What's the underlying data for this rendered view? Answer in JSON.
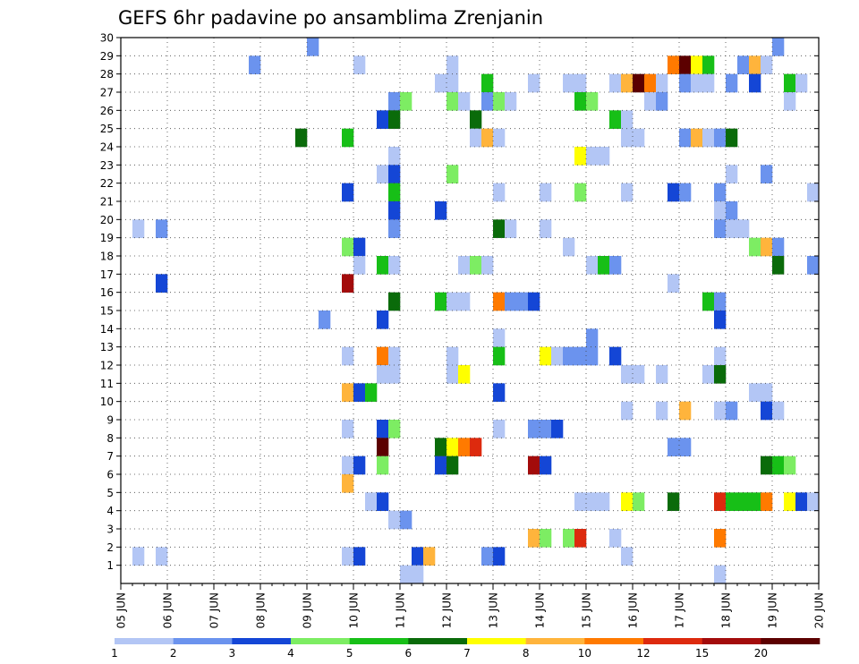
{
  "chart_data": {
    "type": "heatmap",
    "title": "GEFS 6hr padavine po ansamblima Zrenjanin",
    "xlabel": "",
    "ylabel": "",
    "x_tick_labels": [
      "05 JUN",
      "06 JUN",
      "07 JUN",
      "08 JUN",
      "09 JUN",
      "10 JUN",
      "11 JUN",
      "12 JUN",
      "13 JUN",
      "14 JUN",
      "15 JUN",
      "16 JUN",
      "17 JUN",
      "18 JUN",
      "19 JUN",
      "20 JUN"
    ],
    "y_tick_labels": [
      "1",
      "2",
      "3",
      "4",
      "5",
      "6",
      "7",
      "8",
      "9",
      "10",
      "11",
      "12",
      "13",
      "14",
      "15",
      "16",
      "17",
      "18",
      "19",
      "20",
      "21",
      "22",
      "23",
      "24",
      "25",
      "26",
      "27",
      "28",
      "29",
      "30"
    ],
    "xlim_steps": [
      0,
      60
    ],
    "ylim": [
      0,
      30
    ],
    "step_hours": 6,
    "grid": true,
    "colorbar": {
      "position": "bottom",
      "levels": [
        "1",
        "2",
        "3",
        "4",
        "5",
        "6",
        "7",
        "8",
        "10",
        "12",
        "15",
        "20"
      ],
      "colors": [
        "#b3c6f5",
        "#6b93ee",
        "#1446d6",
        "#7ded63",
        "#17bf17",
        "#0a6b0a",
        "#ffff00",
        "#ffb43c",
        "#ff7a00",
        "#dd2a0e",
        "#a30b0b",
        "#5c0000"
      ]
    },
    "cells": [
      [
        16,
        30,
        1
      ],
      [
        56,
        30,
        1
      ],
      [
        11,
        29,
        1
      ],
      [
        20,
        29,
        0
      ],
      [
        28,
        29,
        0
      ],
      [
        47,
        29,
        8
      ],
      [
        48,
        29,
        11
      ],
      [
        49,
        29,
        6
      ],
      [
        50,
        29,
        4
      ],
      [
        53,
        29,
        1
      ],
      [
        54,
        29,
        7
      ],
      [
        55,
        29,
        0
      ],
      [
        27,
        28,
        0
      ],
      [
        28,
        28,
        0
      ],
      [
        31,
        28,
        4
      ],
      [
        35,
        28,
        0
      ],
      [
        38,
        28,
        0
      ],
      [
        39,
        28,
        0
      ],
      [
        42,
        28,
        0
      ],
      [
        43,
        28,
        7
      ],
      [
        44,
        28,
        11
      ],
      [
        45,
        28,
        8
      ],
      [
        46,
        28,
        0
      ],
      [
        48,
        28,
        1
      ],
      [
        49,
        28,
        0
      ],
      [
        50,
        28,
        0
      ],
      [
        52,
        28,
        1
      ],
      [
        54,
        28,
        2
      ],
      [
        57,
        28,
        4
      ],
      [
        58,
        28,
        0
      ],
      [
        23,
        27,
        1
      ],
      [
        24,
        27,
        3
      ],
      [
        28,
        27,
        3
      ],
      [
        29,
        27,
        0
      ],
      [
        31,
        27,
        1
      ],
      [
        32,
        27,
        3
      ],
      [
        33,
        27,
        0
      ],
      [
        39,
        27,
        4
      ],
      [
        40,
        27,
        3
      ],
      [
        45,
        27,
        0
      ],
      [
        46,
        27,
        1
      ],
      [
        57,
        27,
        0
      ],
      [
        22,
        26,
        2
      ],
      [
        23,
        26,
        5
      ],
      [
        30,
        26,
        5
      ],
      [
        42,
        26,
        4
      ],
      [
        43,
        26,
        0
      ],
      [
        15,
        25,
        5
      ],
      [
        19,
        25,
        4
      ],
      [
        30,
        25,
        0
      ],
      [
        31,
        25,
        7
      ],
      [
        32,
        25,
        0
      ],
      [
        43,
        25,
        0
      ],
      [
        44,
        25,
        0
      ],
      [
        48,
        25,
        1
      ],
      [
        49,
        25,
        7
      ],
      [
        50,
        25,
        0
      ],
      [
        51,
        25,
        1
      ],
      [
        52,
        25,
        5
      ],
      [
        23,
        24,
        0
      ],
      [
        39,
        24,
        6
      ],
      [
        40,
        24,
        0
      ],
      [
        41,
        24,
        0
      ],
      [
        22,
        23,
        0
      ],
      [
        23,
        23,
        2
      ],
      [
        28,
        23,
        3
      ],
      [
        52,
        23,
        0
      ],
      [
        55,
        23,
        1
      ],
      [
        19,
        22,
        2
      ],
      [
        23,
        22,
        4
      ],
      [
        32,
        22,
        0
      ],
      [
        36,
        22,
        0
      ],
      [
        39,
        22,
        3
      ],
      [
        43,
        22,
        0
      ],
      [
        47,
        22,
        2
      ],
      [
        48,
        22,
        1
      ],
      [
        51,
        22,
        1
      ],
      [
        59,
        22,
        0
      ],
      [
        23,
        21,
        2
      ],
      [
        27,
        21,
        2
      ],
      [
        51,
        21,
        0
      ],
      [
        52,
        21,
        1
      ],
      [
        1,
        20,
        0
      ],
      [
        3,
        20,
        1
      ],
      [
        23,
        20,
        1
      ],
      [
        32,
        20,
        5
      ],
      [
        33,
        20,
        0
      ],
      [
        36,
        20,
        0
      ],
      [
        51,
        20,
        1
      ],
      [
        52,
        20,
        0
      ],
      [
        53,
        20,
        0
      ],
      [
        19,
        19,
        3
      ],
      [
        20,
        19,
        2
      ],
      [
        38,
        19,
        0
      ],
      [
        54,
        19,
        3
      ],
      [
        55,
        19,
        7
      ],
      [
        56,
        19,
        1
      ],
      [
        20,
        18,
        0
      ],
      [
        22,
        18,
        4
      ],
      [
        23,
        18,
        0
      ],
      [
        29,
        18,
        0
      ],
      [
        30,
        18,
        3
      ],
      [
        31,
        18,
        0
      ],
      [
        40,
        18,
        0
      ],
      [
        41,
        18,
        4
      ],
      [
        42,
        18,
        1
      ],
      [
        56,
        18,
        5
      ],
      [
        59,
        18,
        1
      ],
      [
        3,
        17,
        2
      ],
      [
        19,
        17,
        10
      ],
      [
        47,
        17,
        0
      ],
      [
        23,
        16,
        5
      ],
      [
        27,
        16,
        4
      ],
      [
        28,
        16,
        0
      ],
      [
        29,
        16,
        0
      ],
      [
        32,
        16,
        8
      ],
      [
        33,
        16,
        1
      ],
      [
        34,
        16,
        1
      ],
      [
        35,
        16,
        2
      ],
      [
        50,
        16,
        4
      ],
      [
        51,
        16,
        1
      ],
      [
        17,
        15,
        1
      ],
      [
        22,
        15,
        2
      ],
      [
        51,
        15,
        2
      ],
      [
        32,
        14,
        0
      ],
      [
        40,
        14,
        1
      ],
      [
        19,
        13,
        0
      ],
      [
        22,
        13,
        8
      ],
      [
        23,
        13,
        0
      ],
      [
        28,
        13,
        0
      ],
      [
        32,
        13,
        4
      ],
      [
        36,
        13,
        6
      ],
      [
        37,
        13,
        0
      ],
      [
        38,
        13,
        1
      ],
      [
        39,
        13,
        1
      ],
      [
        40,
        13,
        1
      ],
      [
        42,
        13,
        2
      ],
      [
        51,
        13,
        0
      ],
      [
        22,
        12,
        0
      ],
      [
        23,
        12,
        0
      ],
      [
        28,
        12,
        0
      ],
      [
        29,
        12,
        6
      ],
      [
        43,
        12,
        0
      ],
      [
        44,
        12,
        0
      ],
      [
        46,
        12,
        0
      ],
      [
        50,
        12,
        0
      ],
      [
        51,
        12,
        5
      ],
      [
        19,
        11,
        7
      ],
      [
        20,
        11,
        2
      ],
      [
        21,
        11,
        4
      ],
      [
        32,
        11,
        2
      ],
      [
        54,
        11,
        0
      ],
      [
        55,
        11,
        0
      ],
      [
        43,
        10,
        0
      ],
      [
        46,
        10,
        0
      ],
      [
        48,
        10,
        7
      ],
      [
        51,
        10,
        0
      ],
      [
        52,
        10,
        1
      ],
      [
        55,
        10,
        2
      ],
      [
        56,
        10,
        0
      ],
      [
        19,
        9,
        0
      ],
      [
        22,
        9,
        2
      ],
      [
        23,
        9,
        3
      ],
      [
        32,
        9,
        0
      ],
      [
        35,
        9,
        1
      ],
      [
        36,
        9,
        1
      ],
      [
        37,
        9,
        2
      ],
      [
        22,
        8,
        11
      ],
      [
        27,
        8,
        5
      ],
      [
        28,
        8,
        6
      ],
      [
        29,
        8,
        8
      ],
      [
        30,
        8,
        9
      ],
      [
        47,
        8,
        1
      ],
      [
        48,
        8,
        1
      ],
      [
        19,
        7,
        0
      ],
      [
        20,
        7,
        2
      ],
      [
        22,
        7,
        3
      ],
      [
        27,
        7,
        2
      ],
      [
        28,
        7,
        5
      ],
      [
        35,
        7,
        10
      ],
      [
        36,
        7,
        2
      ],
      [
        55,
        7,
        5
      ],
      [
        56,
        7,
        4
      ],
      [
        57,
        7,
        3
      ],
      [
        19,
        6,
        7
      ],
      [
        21,
        5,
        0
      ],
      [
        22,
        5,
        2
      ],
      [
        39,
        5,
        0
      ],
      [
        40,
        5,
        0
      ],
      [
        41,
        5,
        0
      ],
      [
        43,
        5,
        6
      ],
      [
        44,
        5,
        3
      ],
      [
        47,
        5,
        5
      ],
      [
        51,
        5,
        9
      ],
      [
        52,
        5,
        4
      ],
      [
        53,
        5,
        4
      ],
      [
        54,
        5,
        4
      ],
      [
        55,
        5,
        8
      ],
      [
        57,
        5,
        6
      ],
      [
        58,
        5,
        2
      ],
      [
        59,
        5,
        0
      ],
      [
        23,
        4,
        0
      ],
      [
        24,
        4,
        1
      ],
      [
        35,
        3,
        7
      ],
      [
        36,
        3,
        3
      ],
      [
        38,
        3,
        3
      ],
      [
        39,
        3,
        9
      ],
      [
        42,
        3,
        0
      ],
      [
        51,
        3,
        8
      ],
      [
        1,
        2,
        0
      ],
      [
        3,
        2,
        0
      ],
      [
        19,
        2,
        0
      ],
      [
        20,
        2,
        2
      ],
      [
        25,
        2,
        2
      ],
      [
        26,
        2,
        7
      ],
      [
        31,
        2,
        1
      ],
      [
        32,
        2,
        2
      ],
      [
        43,
        2,
        0
      ],
      [
        24,
        1,
        0
      ],
      [
        25,
        1,
        0
      ],
      [
        51,
        1,
        0
      ]
    ]
  }
}
